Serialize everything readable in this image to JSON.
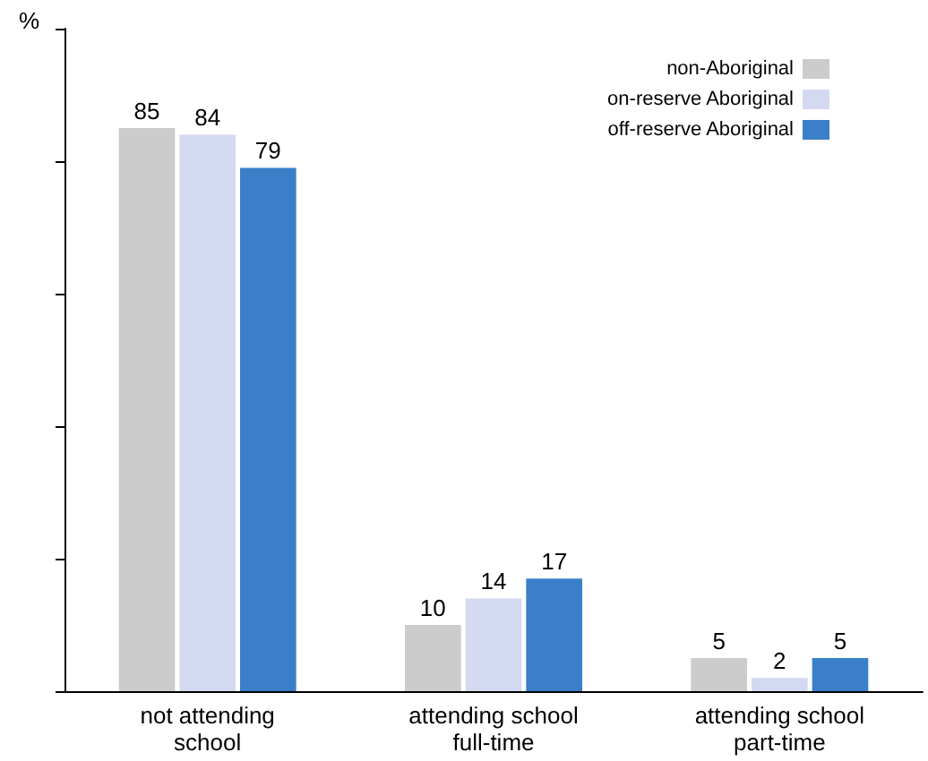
{
  "chart_data": {
    "type": "bar",
    "ylabel": "%",
    "categories": [
      "not attending\nschool",
      "attending school\nfull-time",
      "attending school\npart-time"
    ],
    "series": [
      {
        "name": "non-Aboriginal",
        "color": "#cccccc",
        "values": [
          85,
          10,
          5
        ]
      },
      {
        "name": "on-reserve Aboriginal",
        "color": "#d3d9f0",
        "values": [
          84,
          14,
          2
        ]
      },
      {
        "name": "off-reserve Aboriginal",
        "color": "#3a7fc8",
        "values": [
          79,
          17,
          5
        ]
      }
    ],
    "ylim": [
      0,
      100
    ],
    "yticks": [
      {
        "value": 0,
        "label": null
      },
      {
        "value": 20,
        "label": null
      },
      {
        "value": 40,
        "label": null
      },
      {
        "value": 60,
        "label": null
      },
      {
        "value": 80,
        "label": null
      },
      {
        "value": 100,
        "label": null
      }
    ],
    "data_labels": true,
    "legend": "top right",
    "tick_labels": "x"
  }
}
